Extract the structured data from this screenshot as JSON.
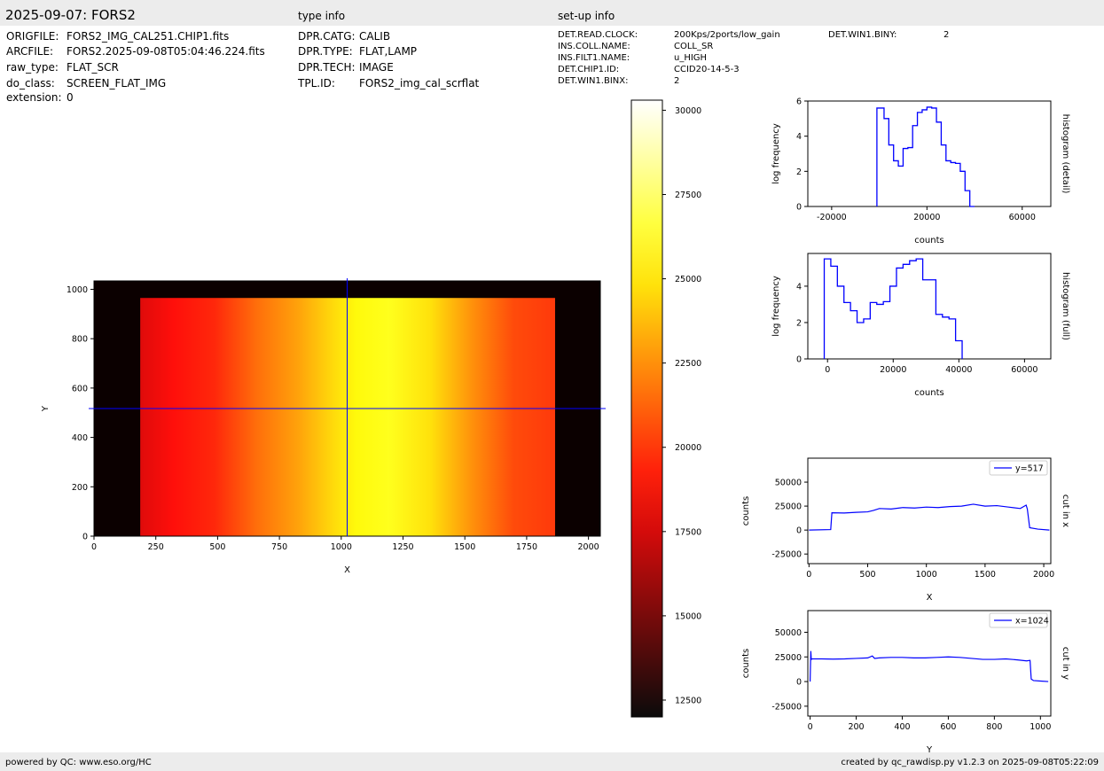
{
  "header": {
    "title": "2025-09-07: FORS2",
    "type_info_title": "type info",
    "setup_info_title": "set-up info"
  },
  "file_info": [
    {
      "key": "ORIGFILE:",
      "value": "FORS2_IMG_CAL251.CHIP1.fits"
    },
    {
      "key": "ARCFILE:",
      "value": "FORS2.2025-09-08T05:04:46.224.fits"
    },
    {
      "key": "raw_type:",
      "value": "FLAT_SCR"
    },
    {
      "key": "do_class:",
      "value": "SCREEN_FLAT_IMG"
    },
    {
      "key": "extension:",
      "value": "0"
    }
  ],
  "type_info": [
    {
      "key": "DPR.CATG:",
      "value": "CALIB"
    },
    {
      "key": "DPR.TYPE:",
      "value": "FLAT,LAMP"
    },
    {
      "key": "DPR.TECH:",
      "value": "IMAGE"
    },
    {
      "key": "TPL.ID:",
      "value": "FORS2_img_cal_scrflat"
    }
  ],
  "setup_info": [
    {
      "key": "DET.READ.CLOCK:",
      "value": "200Kps/2ports/low_gain"
    },
    {
      "key": "INS.COLL.NAME:",
      "value": "COLL_SR"
    },
    {
      "key": "INS.FILT1.NAME:",
      "value": "u_HIGH"
    },
    {
      "key": "DET.CHIP1.ID:",
      "value": "CCID20-14-5-3"
    },
    {
      "key": "DET.WIN1.BINX:",
      "value": "2"
    }
  ],
  "setup_info_extra": [
    {
      "key": "DET.WIN1.BINY:",
      "value": "2"
    }
  ],
  "footer": {
    "left": "powered by QC: www.eso.org/HC",
    "right": "created by qc_rawdisp.py v1.2.3 on 2025-09-08T05:22:09"
  },
  "colors": {
    "band": "#ececec",
    "line": "#0000ff",
    "crosshair": "#0000ff"
  },
  "chart_data": [
    {
      "id": "image",
      "type": "heatmap",
      "xlabel": "X",
      "ylabel": "Y",
      "xlim": [
        0,
        2048
      ],
      "ylim": [
        0,
        1034
      ],
      "xticks": [
        0,
        250,
        500,
        750,
        1000,
        1250,
        1500,
        1750,
        2000
      ],
      "yticks": [
        0,
        200,
        400,
        600,
        800,
        1000
      ],
      "illuminated_region": {
        "x": [
          187,
          1865
        ],
        "y": [
          0,
          965
        ]
      },
      "crosshair": {
        "x": 1024,
        "y": 517
      },
      "colormap": "hot",
      "colorbar": {
        "range": [
          12000,
          30300
        ],
        "ticks": [
          12500,
          15000,
          17500,
          20000,
          22500,
          25000,
          27500,
          30000
        ]
      }
    },
    {
      "id": "hist_detail",
      "type": "line",
      "xlabel": "counts",
      "ylabel": "log frequency",
      "side_label": "histogram (detail)",
      "xlim": [
        -30000,
        72000
      ],
      "ylim": [
        0,
        6
      ],
      "xticks": [
        -20000,
        20000,
        60000
      ],
      "yticks": [
        0,
        2,
        4,
        6
      ],
      "x": [
        -1000,
        2000,
        4000,
        6000,
        8000,
        10000,
        12000,
        14000,
        16000,
        18000,
        20000,
        22000,
        24000,
        26000,
        28000,
        30000,
        32000,
        34000,
        36000,
        38000,
        40000
      ],
      "y": [
        5.6,
        5.0,
        3.5,
        2.6,
        2.3,
        3.3,
        3.35,
        4.6,
        5.35,
        5.5,
        5.65,
        5.6,
        4.8,
        3.5,
        2.6,
        2.5,
        2.45,
        2.0,
        0.9,
        0.0,
        0.0
      ]
    },
    {
      "id": "hist_full",
      "type": "line",
      "xlabel": "counts",
      "ylabel": "log frequency",
      "side_label": "histogram (full)",
      "xlim": [
        -6000,
        68000
      ],
      "ylim": [
        0,
        5.8
      ],
      "xticks": [
        0,
        20000,
        40000,
        60000
      ],
      "yticks": [
        0,
        2,
        4
      ],
      "x": [
        -1000,
        1000,
        3000,
        5000,
        7000,
        9000,
        11000,
        13000,
        15000,
        17000,
        19000,
        21000,
        23000,
        25000,
        27000,
        29000,
        33000,
        35000,
        37000,
        39000,
        41000
      ],
      "y": [
        5.5,
        5.1,
        4.0,
        3.1,
        2.65,
        2.0,
        2.2,
        3.1,
        3.0,
        3.15,
        4.0,
        5.0,
        5.2,
        5.4,
        5.5,
        4.35,
        2.45,
        2.3,
        2.2,
        1.0,
        0.0
      ]
    },
    {
      "id": "cut_x",
      "type": "line",
      "xlabel": "X",
      "ylabel": "counts",
      "side_label": "cut in x",
      "legend": "y=517",
      "xlim": [
        -10,
        2060
      ],
      "ylim": [
        -35000,
        75000
      ],
      "xticks": [
        0,
        500,
        1000,
        1500,
        2000
      ],
      "yticks": [
        -25000,
        0,
        25000,
        50000
      ],
      "x": [
        0,
        185,
        195,
        300,
        400,
        500,
        550,
        600,
        700,
        800,
        900,
        1000,
        1100,
        1200,
        1300,
        1400,
        1500,
        1600,
        1700,
        1800,
        1850,
        1860,
        1880,
        1950,
        2048
      ],
      "y": [
        0,
        500,
        18000,
        17800,
        18500,
        19000,
        20500,
        22500,
        22000,
        23500,
        23000,
        24000,
        23500,
        24500,
        25000,
        27000,
        25000,
        25500,
        24000,
        22500,
        26000,
        22000,
        2500,
        1000,
        0
      ]
    },
    {
      "id": "cut_y",
      "type": "line",
      "xlabel": "Y",
      "ylabel": "counts",
      "side_label": "cut in y",
      "legend": "x=1024",
      "xlim": [
        -10,
        1045
      ],
      "ylim": [
        -35000,
        72000
      ],
      "xticks": [
        0,
        200,
        400,
        600,
        800,
        1000
      ],
      "yticks": [
        -25000,
        0,
        25000,
        50000
      ],
      "x": [
        0,
        3,
        5,
        10,
        50,
        100,
        150,
        200,
        250,
        270,
        280,
        300,
        350,
        400,
        450,
        500,
        550,
        600,
        650,
        700,
        750,
        800,
        850,
        900,
        940,
        955,
        960,
        970,
        1000,
        1034
      ],
      "y": [
        0,
        31000,
        22500,
        23000,
        23000,
        22800,
        23000,
        23500,
        24000,
        26000,
        23500,
        24000,
        24500,
        24500,
        24000,
        24000,
        24500,
        25000,
        24500,
        23500,
        22500,
        22500,
        23000,
        22000,
        21000,
        21500,
        2500,
        1000,
        500,
        0
      ]
    }
  ]
}
